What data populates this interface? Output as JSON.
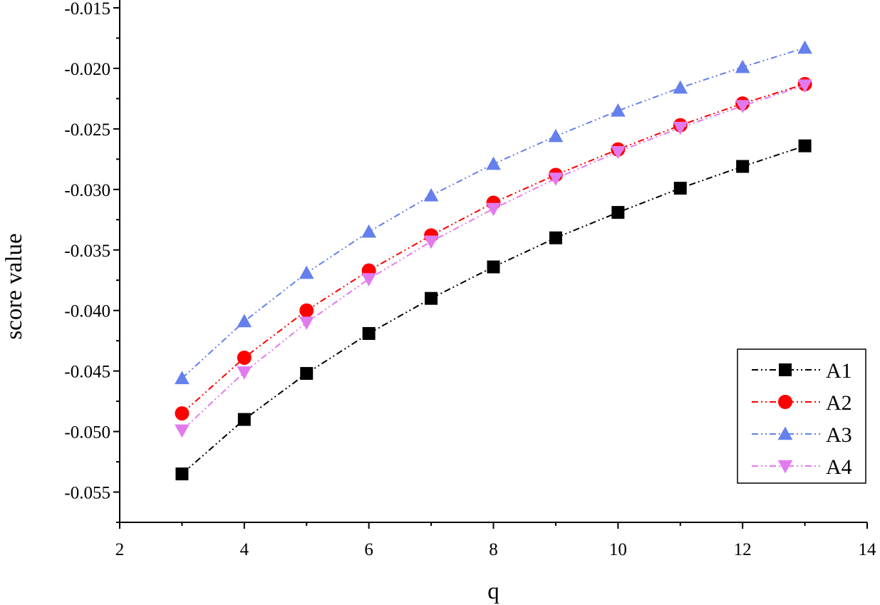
{
  "chart_data": {
    "type": "line",
    "title": "",
    "xlabel": "q",
    "ylabel": "score value",
    "xlim": [
      2,
      14
    ],
    "ylim": [
      -0.0575,
      -0.015
    ],
    "x_ticks": [
      2,
      4,
      6,
      8,
      10,
      12,
      14
    ],
    "x_tick_labels": [
      "2",
      "4",
      "6",
      "8",
      "10",
      "12",
      "14"
    ],
    "y_ticks": [
      -0.015,
      -0.02,
      -0.025,
      -0.03,
      -0.035,
      -0.04,
      -0.045,
      -0.05,
      -0.055
    ],
    "y_tick_labels": [
      "-0.015",
      "-0.020",
      "-0.025",
      "-0.030",
      "-0.035",
      "-0.040",
      "-0.045",
      "-0.050",
      "-0.055"
    ],
    "grid": false,
    "legend_position": "bottom-right",
    "x": [
      3,
      4,
      5,
      6,
      7,
      8,
      9,
      10,
      11,
      12,
      13
    ],
    "series": [
      {
        "name": "A1",
        "color": "#000000",
        "marker": "square",
        "line_style": "dash-dot-dot",
        "values": [
          -0.0535,
          -0.049,
          -0.0452,
          -0.0419,
          -0.039,
          -0.0364,
          -0.034,
          -0.0319,
          -0.0299,
          -0.0281,
          -0.0264
        ]
      },
      {
        "name": "A2",
        "color": "#ff0000",
        "marker": "circle",
        "line_style": "dash-dot-dot",
        "values": [
          -0.0485,
          -0.0439,
          -0.04,
          -0.0367,
          -0.0338,
          -0.0311,
          -0.0288,
          -0.0267,
          -0.0247,
          -0.0229,
          -0.0213
        ]
      },
      {
        "name": "A3",
        "color": "#6480ed",
        "marker": "triangle-up",
        "line_style": "dash-dot-dot",
        "values": [
          -0.0456,
          -0.0409,
          -0.0369,
          -0.0335,
          -0.0305,
          -0.0279,
          -0.0256,
          -0.0235,
          -0.0216,
          -0.0199,
          -0.0183
        ]
      },
      {
        "name": "A4",
        "color": "#e27aef",
        "marker": "triangle-down",
        "line_style": "dash-dot-dot",
        "values": [
          -0.0499,
          -0.0451,
          -0.041,
          -0.0374,
          -0.0343,
          -0.0316,
          -0.0291,
          -0.0269,
          -0.0249,
          -0.0231,
          -0.0214
        ]
      }
    ]
  }
}
